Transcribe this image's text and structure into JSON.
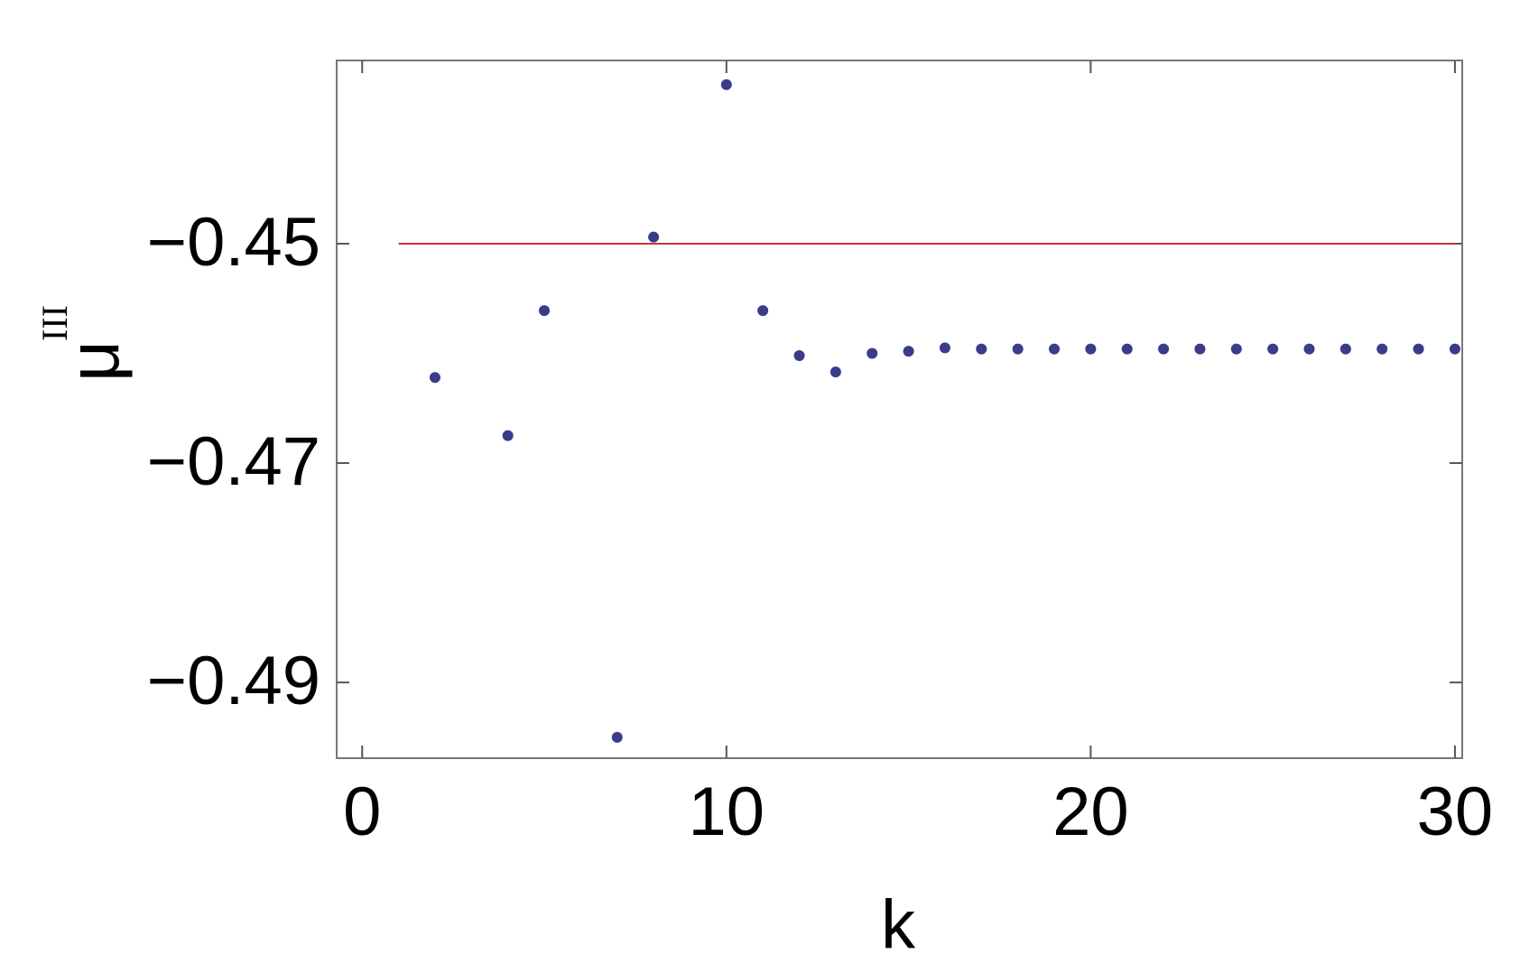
{
  "chart_data": {
    "type": "scatter",
    "xlabel": "k",
    "ylabel": "μ",
    "ylabel_superscript": "III",
    "x": [
      2,
      4,
      5,
      7,
      8,
      10,
      11,
      12,
      13,
      14,
      15,
      16,
      17,
      18,
      19,
      20,
      21,
      22,
      23,
      24,
      25,
      26,
      27,
      28,
      29,
      30
    ],
    "series": [
      {
        "color": "#3b3b8c",
        "values": [
          -0.4622,
          -0.4675,
          -0.4561,
          -0.495,
          -0.4494,
          -0.4355,
          -0.4561,
          -0.4602,
          -0.4617,
          -0.46,
          -0.4598,
          -0.4595,
          -0.4596,
          -0.4596,
          -0.4596,
          -0.4596,
          -0.4596,
          -0.4596,
          -0.4596,
          -0.4596,
          -0.4596,
          -0.4596,
          -0.4596,
          -0.4596,
          -0.4596,
          -0.4596
        ]
      }
    ],
    "reference_line": {
      "y": -0.45,
      "x": [
        1,
        30
      ],
      "color": "#c8323c"
    },
    "xlim": [
      -0.7,
      30.2
    ],
    "ylim": [
      -0.4969,
      -0.4333
    ],
    "xticks": [
      0,
      10,
      20,
      30
    ],
    "yticks": [
      {
        "value": -0.45,
        "label": "−0.45"
      },
      {
        "value": -0.47,
        "label": "−0.47"
      },
      {
        "value": -0.49,
        "label": "−0.49"
      }
    ],
    "grid": false
  }
}
